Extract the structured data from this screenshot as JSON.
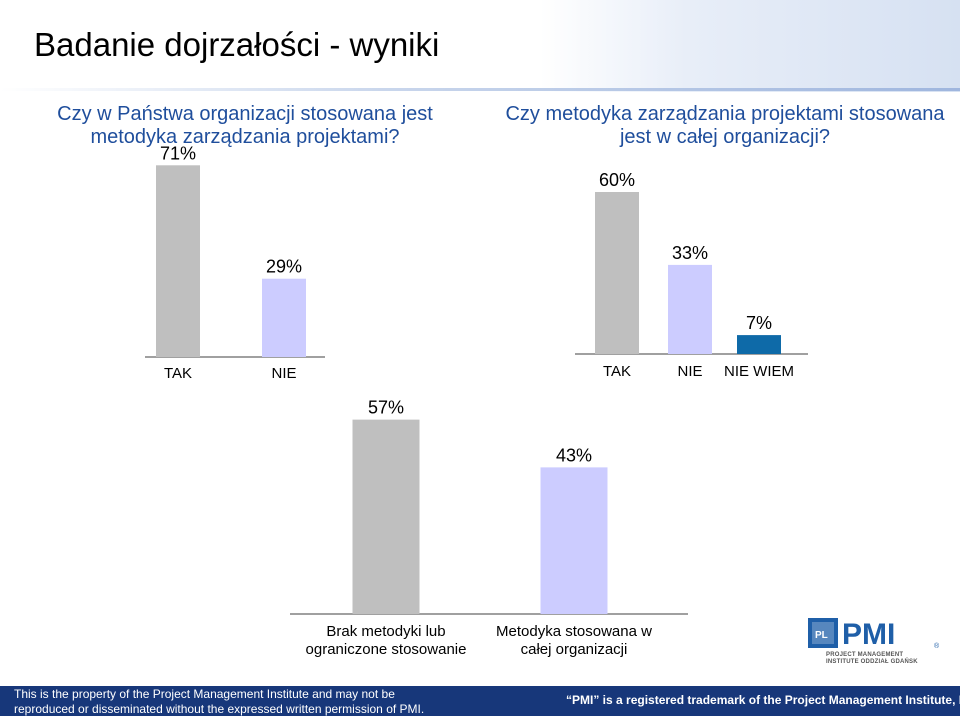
{
  "slide": {
    "title": "Badanie dojrzałości - wyniki"
  },
  "questions": {
    "q1": "Czy w Państwa organizacji stosowana jest metodyka zarządzania projektami?",
    "q2": "Czy metodyka zarządzania projektami stosowana jest w całej organizacji?"
  },
  "footer": {
    "left": "This is the property of the Project Management Institute and may not be reproduced or disseminated without the expressed written permission of PMI.",
    "right": "“PMI” is a registered trademark of the Project Management Institute, Inc."
  },
  "logo": {
    "text": "PMI",
    "tagline": "PROJECT MANAGEMENT INSTITUTE ODDZIAŁ GDAŃSK"
  },
  "colors": {
    "gray": "#bfbfbf",
    "lavender": "#ccccff",
    "blue": "#0e6aa8",
    "title_blue": "#1f4e9c",
    "footer": "#17377a"
  },
  "chart_data": [
    {
      "type": "bar",
      "categories": [
        "TAK",
        "NIE"
      ],
      "values": [
        71,
        29
      ],
      "labels": [
        "71%",
        "29%"
      ],
      "colors": [
        "#bfbfbf",
        "#ccccff"
      ],
      "ylim": [
        0,
        100
      ]
    },
    {
      "type": "bar",
      "categories": [
        "TAK",
        "NIE",
        "NIE WIEM"
      ],
      "values": [
        60,
        33,
        7
      ],
      "labels": [
        "60%",
        "33%",
        "7%"
      ],
      "colors": [
        "#bfbfbf",
        "#ccccff",
        "#0e6aa8"
      ],
      "ylim": [
        0,
        100
      ]
    },
    {
      "type": "bar",
      "categories": [
        [
          "Brak metodyki lub",
          "ograniczone stosowanie"
        ],
        [
          "Metodyka stosowana w",
          "całej organizacji"
        ]
      ],
      "values": [
        57,
        43
      ],
      "labels": [
        "57%",
        "43%"
      ],
      "colors": [
        "#bfbfbf",
        "#ccccff"
      ],
      "ylim": [
        0,
        100
      ]
    }
  ]
}
